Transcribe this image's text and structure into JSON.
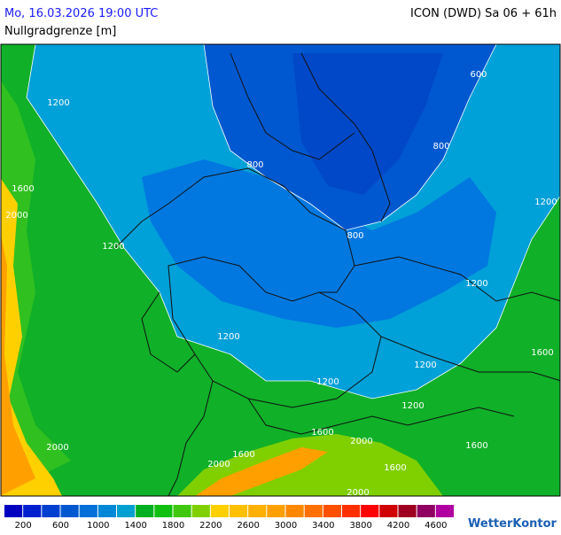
{
  "header": {
    "datetime": "Mo, 16.03.2026 19:00 UTC",
    "model": "ICON (DWD) Sa 06 + 61h",
    "variable": "Nullgradgrenze [m]"
  },
  "contour_labels": [
    "600",
    "1200",
    "800",
    "800",
    "1600",
    "2000",
    "1200",
    "1200",
    "800",
    "1200",
    "1200",
    "1600",
    "1200",
    "1200",
    "1200",
    "1600",
    "2000",
    "1600",
    "2000",
    "1600",
    "2000",
    "1600",
    "2000"
  ],
  "legend": {
    "colors": [
      "#0000c0",
      "#0020d0",
      "#0040d0",
      "#0058d0",
      "#0070d8",
      "#0088d8",
      "#00a0d0",
      "#00b020",
      "#10c010",
      "#40c810",
      "#80d000",
      "#ffd000",
      "#ffc000",
      "#ffb000",
      "#ffa000",
      "#ff8800",
      "#ff7000",
      "#ff5000",
      "#ff3000",
      "#ff0000",
      "#d00000",
      "#a00020",
      "#900060",
      "#b000a0"
    ],
    "labels": [
      200,
      600,
      1000,
      1400,
      1800,
      2200,
      2600,
      3000,
      3400,
      3800,
      4200,
      4600
    ]
  },
  "logo": "WetterKontor"
}
